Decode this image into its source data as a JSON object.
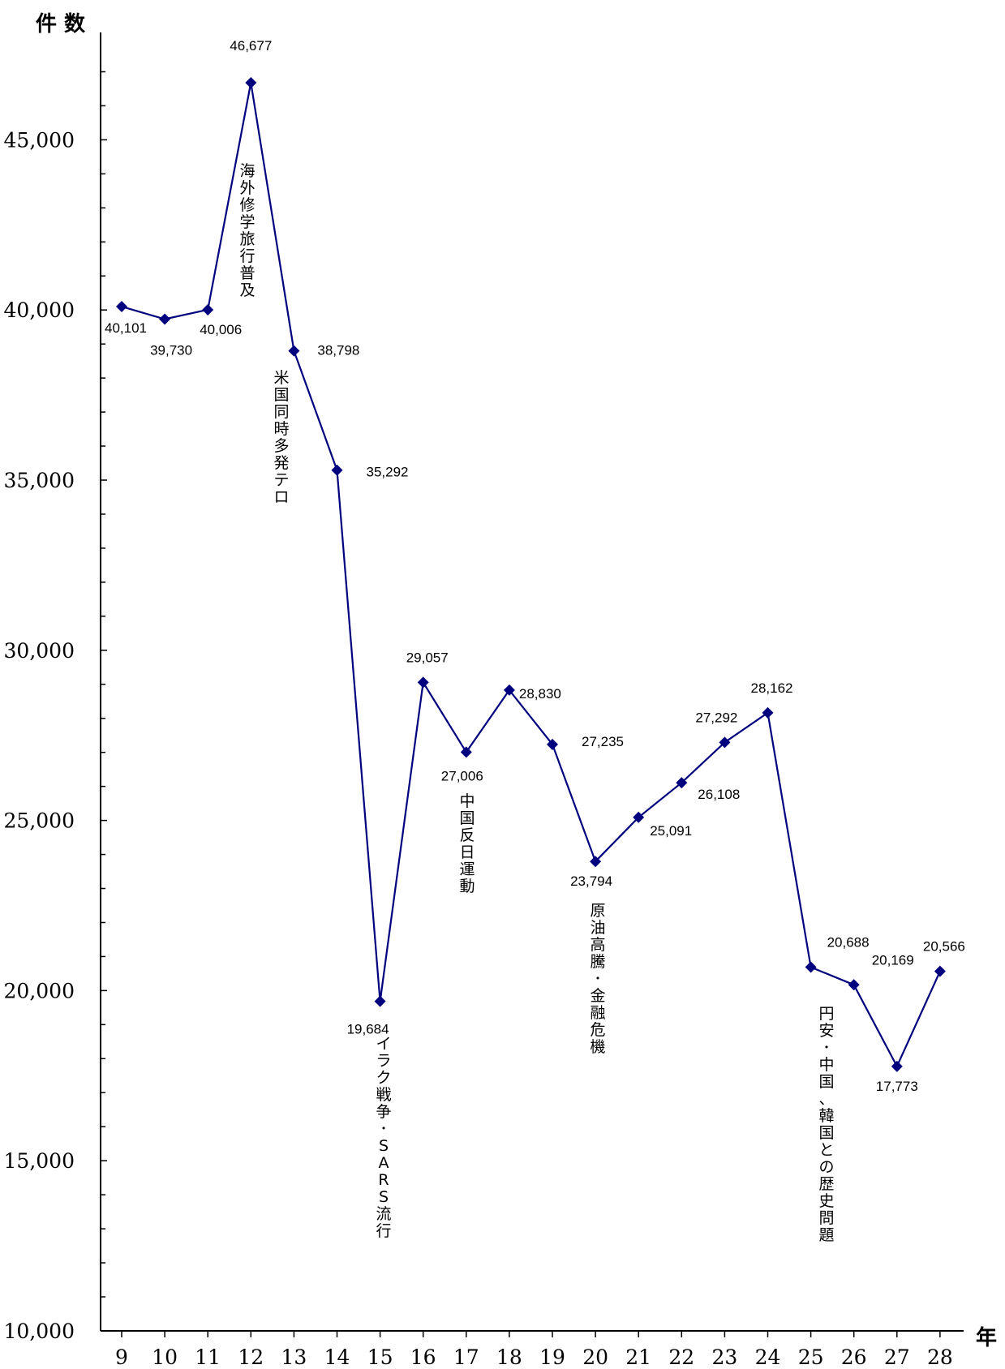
{
  "chart_data": {
    "type": "line",
    "ylabel": "件 数",
    "xlabel": "年",
    "ylim": [
      10000,
      47500
    ],
    "yticks": [
      10000,
      15000,
      20000,
      25000,
      30000,
      35000,
      40000,
      45000
    ],
    "ytick_labels": [
      "10,000",
      "15,000",
      "20,000",
      "25,000",
      "30,000",
      "35,000",
      "40,000",
      "45,000"
    ],
    "grid": false,
    "legend": "none",
    "line_color": "#00007f",
    "x": [
      "9",
      "10",
      "11",
      "12",
      "13",
      "14",
      "15",
      "16",
      "17",
      "18",
      "19",
      "20",
      "21",
      "22",
      "23",
      "24",
      "25",
      "26",
      "27",
      "28"
    ],
    "values": [
      40101,
      39730,
      40006,
      46677,
      38798,
      35292,
      19684,
      29057,
      27006,
      28830,
      27235,
      23794,
      25091,
      26108,
      27292,
      28162,
      20688,
      20169,
      17773,
      20566
    ],
    "data_labels": [
      "40,101",
      "39,730",
      "40,006",
      "46,677",
      "38,798",
      "35,292",
      "19,684",
      "29,057",
      "27,006",
      "28,830",
      "27,235",
      "23,794",
      "25,091",
      "26,108",
      "27,292",
      "28,162",
      "20,688",
      "20,169",
      "17,773",
      "20,566"
    ],
    "annotations": [
      {
        "x": "12",
        "text": "海外修学旅行普及"
      },
      {
        "x": "13",
        "text": "米国同時多発テロ"
      },
      {
        "x": "15",
        "text": "イラク戦争･SARS流行"
      },
      {
        "x": "17",
        "text": "中国反日運動"
      },
      {
        "x": "20",
        "text": "原油高騰･金融危機"
      },
      {
        "x": "25",
        "text": "円安･中国、韓国との歴史問題"
      }
    ]
  }
}
